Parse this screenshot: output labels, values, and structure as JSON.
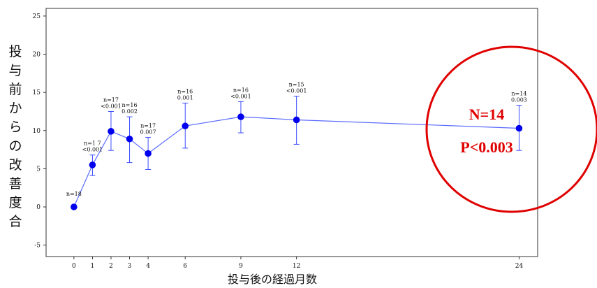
{
  "chart_data": {
    "type": "line",
    "title": "",
    "xlabel": "投与後の経過月数",
    "ylabel": "投与前からの改善度合",
    "xlim": [
      -1.5,
      25
    ],
    "ylim": [
      -6.5,
      26
    ],
    "x_ticks": [
      0,
      1,
      2,
      3,
      4,
      6,
      9,
      12,
      24
    ],
    "y_ticks": [
      -5,
      0,
      5,
      10,
      15,
      20,
      25
    ],
    "grid": false,
    "series": [
      {
        "color": "#0000ee",
        "x": [
          0,
          1,
          2,
          3,
          4,
          6,
          9,
          12,
          24
        ],
        "y": [
          0,
          5.5,
          9.9,
          8.9,
          7.0,
          10.6,
          11.8,
          11.4,
          10.3
        ],
        "err_low": [
          0,
          4.1,
          7.4,
          5.8,
          4.9,
          7.7,
          9.7,
          8.2,
          7.4
        ],
        "err_high": [
          0,
          6.8,
          12.5,
          11.8,
          9.1,
          13.6,
          13.8,
          14.5,
          13.3
        ],
        "n_labels": [
          "n=18",
          "n=1 7",
          "n=17",
          "n=16",
          "n=17",
          "n=16",
          "n=16",
          "n=15",
          "n=14"
        ],
        "p_labels": [
          "",
          "<0.001",
          "<0.001",
          "0.002",
          "0.007",
          "0.001",
          "<0.001",
          "<0.001",
          "0.003"
        ]
      }
    ],
    "highlight": {
      "text1": "N=14",
      "text2": "P<0.003",
      "color": "#e00000"
    }
  }
}
